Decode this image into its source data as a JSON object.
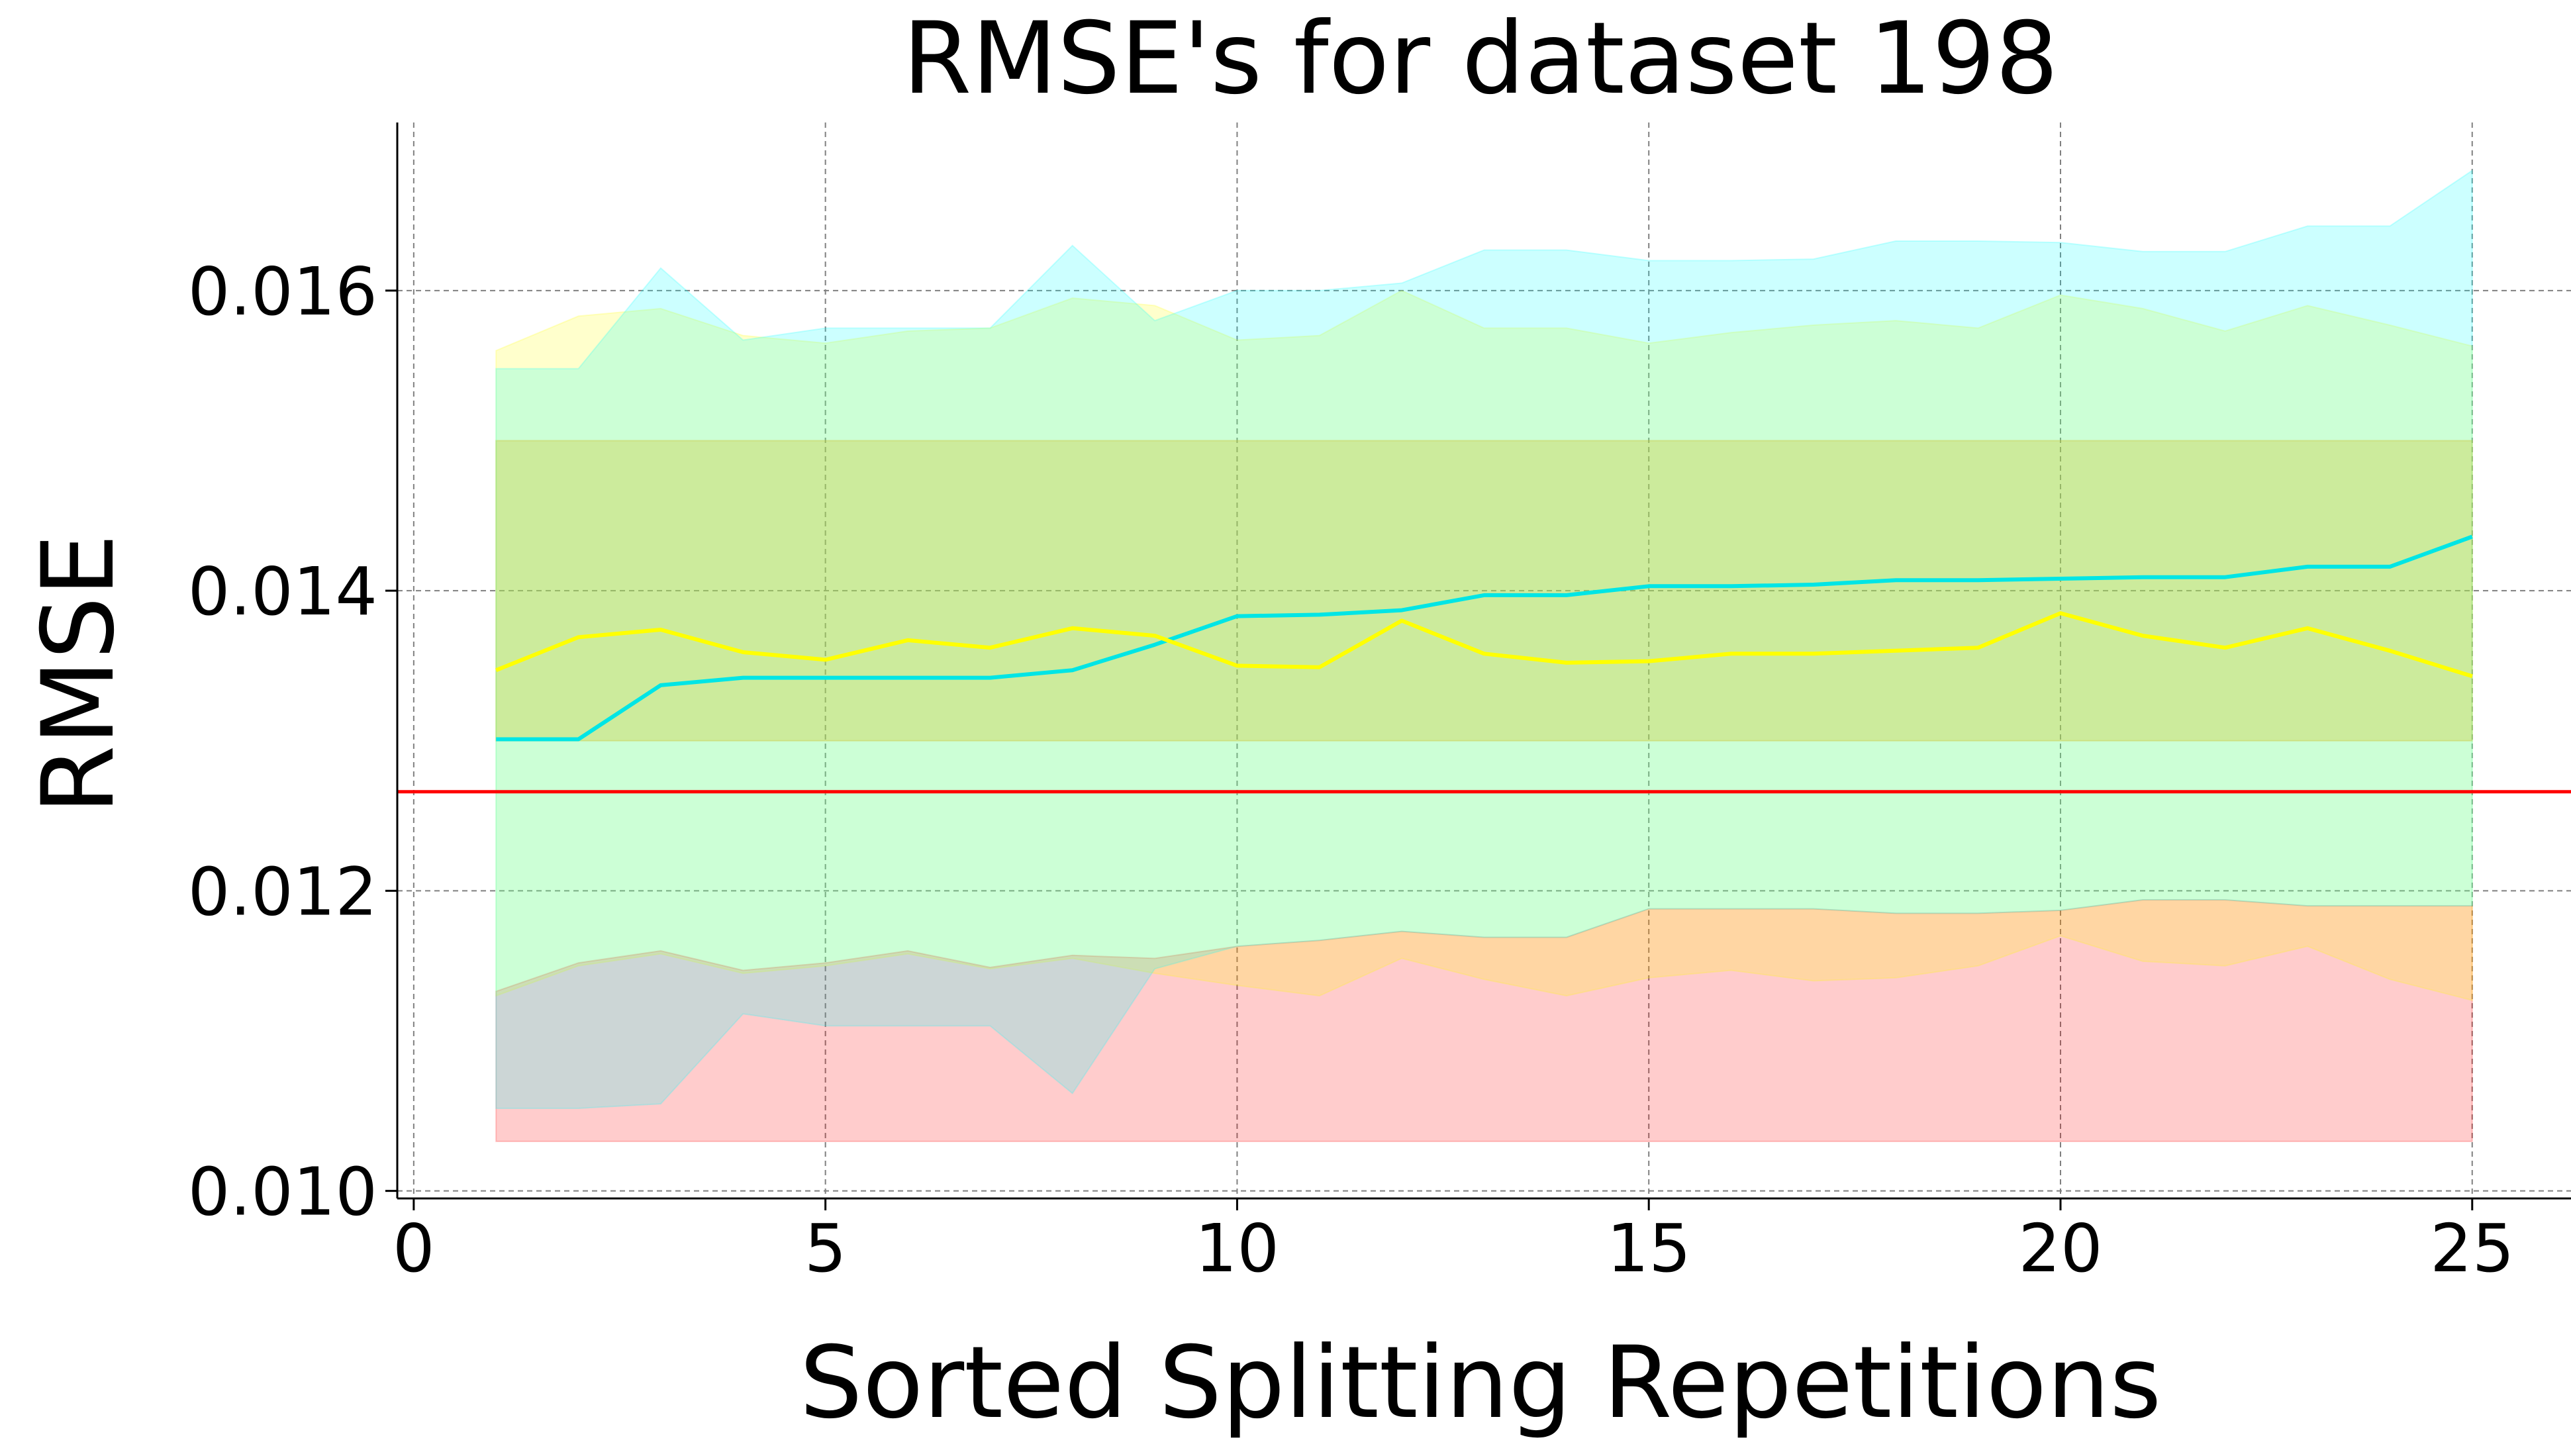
{
  "chart_data": {
    "type": "line",
    "title": "RMSE's for dataset 198",
    "xlabel": "Sorted Splitting Repetitions",
    "ylabel": "RMSE",
    "xlim": [
      -0.2,
      26.2
    ],
    "ylim": [
      0.00995,
      0.01712
    ],
    "xticks": [
      0,
      5,
      10,
      15,
      20,
      25
    ],
    "xtick_labels": [
      "0",
      "5",
      "10",
      "15",
      "20",
      "25"
    ],
    "yticks": [
      0.01,
      0.012,
      0.014,
      0.016
    ],
    "ytick_labels": [
      "0.010",
      "0.012",
      "0.014",
      "0.016"
    ],
    "grid": true,
    "legend": "none",
    "x": [
      1,
      2,
      3,
      4,
      5,
      6,
      7,
      8,
      9,
      10,
      11,
      12,
      13,
      14,
      15,
      16,
      17,
      18,
      19,
      20,
      21,
      22,
      23,
      24,
      25
    ],
    "bands": [
      {
        "color": "#ffa500",
        "opacity": 0.35,
        "lower": [
          0.013,
          0.013,
          0.013,
          0.013,
          0.013,
          0.013,
          0.013,
          0.013,
          0.013,
          0.013,
          0.013,
          0.013,
          0.013,
          0.013,
          0.013,
          0.013,
          0.013,
          0.013,
          0.013,
          0.013,
          0.013,
          0.013,
          0.013,
          0.013,
          0.013
        ],
        "upper": [
          0.015,
          0.015,
          0.015,
          0.015,
          0.015,
          0.015,
          0.015,
          0.015,
          0.015,
          0.015,
          0.015,
          0.015,
          0.015,
          0.015,
          0.015,
          0.015,
          0.015,
          0.015,
          0.015,
          0.015,
          0.015,
          0.015,
          0.015,
          0.015,
          0.015
        ]
      },
      {
        "color": "#ff0000",
        "opacity": 0.2,
        "lower": [
          0.01033,
          0.01033,
          0.01033,
          0.01033,
          0.01033,
          0.01033,
          0.01033,
          0.01033,
          0.01033,
          0.01033,
          0.01033,
          0.01033,
          0.01033,
          0.01033,
          0.01033,
          0.01033,
          0.01033,
          0.01033,
          0.01033,
          0.01033,
          0.01033,
          0.01033,
          0.01033,
          0.01033,
          0.01033
        ],
        "upper": [
          0.01133,
          0.01152,
          0.0116,
          0.01147,
          0.01152,
          0.0116,
          0.01149,
          0.01157,
          0.01155,
          0.01163,
          0.01167,
          0.01173,
          0.01169,
          0.01169,
          0.01188,
          0.01188,
          0.01188,
          0.01185,
          0.01185,
          0.01187,
          0.01194,
          0.01194,
          0.0119,
          0.0119,
          0.0119
        ]
      },
      {
        "color": "#ffff00",
        "opacity": 0.2,
        "lower": [
          0.0113,
          0.0115,
          0.01158,
          0.01145,
          0.0115,
          0.01158,
          0.01148,
          0.01155,
          0.01145,
          0.01137,
          0.0113,
          0.01155,
          0.01141,
          0.0113,
          0.01142,
          0.01147,
          0.0114,
          0.01142,
          0.0115,
          0.0117,
          0.01153,
          0.0115,
          0.01163,
          0.01141,
          0.01127
        ],
        "upper": [
          0.0156,
          0.01583,
          0.01588,
          0.0157,
          0.01565,
          0.01573,
          0.01575,
          0.01595,
          0.0159,
          0.01567,
          0.0157,
          0.016,
          0.01575,
          0.01575,
          0.01565,
          0.01572,
          0.01577,
          0.0158,
          0.01575,
          0.01597,
          0.01588,
          0.01573,
          0.0159,
          0.01577,
          0.01563
        ]
      },
      {
        "color": "#00ffff",
        "opacity": 0.2,
        "lower": [
          0.01055,
          0.01055,
          0.01058,
          0.01118,
          0.0111,
          0.0111,
          0.0111,
          0.01065,
          0.01148,
          0.01163,
          0.01167,
          0.01173,
          0.01169,
          0.01169,
          0.01188,
          0.01188,
          0.01188,
          0.01185,
          0.01185,
          0.01187,
          0.01194,
          0.01194,
          0.0119,
          0.0119,
          0.0119
        ],
        "upper": [
          0.01548,
          0.01548,
          0.01615,
          0.01567,
          0.01575,
          0.01575,
          0.01575,
          0.0163,
          0.0158,
          0.016,
          0.016,
          0.01605,
          0.01627,
          0.01627,
          0.0162,
          0.0162,
          0.01621,
          0.01633,
          0.01633,
          0.01632,
          0.01626,
          0.01626,
          0.01643,
          0.01643,
          0.0168
        ]
      }
    ],
    "series": [
      {
        "color": "#00e5e5",
        "values": [
          0.01301,
          0.01301,
          0.01337,
          0.01342,
          0.01342,
          0.01342,
          0.01342,
          0.01347,
          0.01364,
          0.01383,
          0.01384,
          0.01387,
          0.01397,
          0.01397,
          0.01403,
          0.01403,
          0.01404,
          0.01407,
          0.01407,
          0.01408,
          0.01409,
          0.01409,
          0.01416,
          0.01416,
          0.01436
        ]
      },
      {
        "color": "#ffff00",
        "values": [
          0.01347,
          0.01369,
          0.01374,
          0.01359,
          0.01354,
          0.01367,
          0.01362,
          0.01375,
          0.0137,
          0.0135,
          0.01349,
          0.0138,
          0.01358,
          0.01352,
          0.01353,
          0.01358,
          0.01358,
          0.0136,
          0.01362,
          0.01385,
          0.0137,
          0.01362,
          0.01375,
          0.0136,
          0.01343
        ]
      }
    ],
    "hline": {
      "y": 0.01266,
      "color": "#ff0000"
    }
  }
}
